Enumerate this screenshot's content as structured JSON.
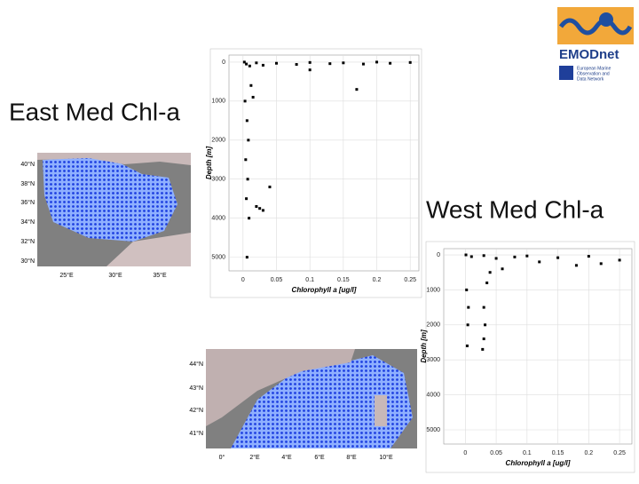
{
  "slide": {
    "east_title": "East Med Chl-a",
    "west_title": "West Med Chl-a",
    "logo": {
      "name": "EMODnet",
      "subtitle_lines": [
        "European Marine",
        "Observation and",
        "Data Network"
      ]
    }
  },
  "maps": [
    {
      "lon_labels": [
        "25°E",
        "30°E",
        "35°E"
      ],
      "lat_labels": [
        "40°N",
        "38°N",
        "36°N",
        "34°N",
        "32°N",
        "30°N"
      ]
    },
    {
      "lon_labels": [
        "0°",
        "2°E",
        "4°E",
        "6°E",
        "8°E",
        "10°E"
      ],
      "lat_labels": [
        "44°N",
        "43°N",
        "42°N",
        "41°N"
      ]
    }
  ],
  "chart_data": [
    {
      "type": "scatter",
      "xlabel": "Chlorophyll a [ug/l]",
      "ylabel": "Depth [m]",
      "color": "#000000",
      "grid": true,
      "y_inverted": true,
      "xlim": [
        -0.021,
        0.263
      ],
      "ylim": [
        -180,
        5350
      ],
      "xticks": [
        0,
        0.05,
        0.1,
        0.15,
        0.2,
        0.25
      ],
      "yticks": [
        0,
        1000,
        2000,
        3000,
        4000,
        5000
      ],
      "x": [
        0.002,
        0.005,
        0.01,
        0.02,
        0.03,
        0.05,
        0.08,
        0.1,
        0.13,
        0.15,
        0.18,
        0.2,
        0.22,
        0.25,
        0.003,
        0.006,
        0.008,
        0.004,
        0.007,
        0.005,
        0.009,
        0.006,
        0.02,
        0.025,
        0.03,
        0.04,
        0.012,
        0.015,
        0.1,
        0.17
      ],
      "values": [
        0,
        50,
        100,
        20,
        80,
        30,
        60,
        10,
        40,
        20,
        50,
        0,
        30,
        10,
        1000,
        1500,
        2000,
        2500,
        3000,
        3500,
        4000,
        5000,
        3700,
        3750,
        3800,
        3200,
        600,
        900,
        200,
        700
      ]
    },
    {
      "type": "scatter",
      "xlabel": "Chlorophyll a [ug/l]",
      "ylabel": "Depth [m]",
      "color": "#000000",
      "grid": true,
      "y_inverted": true,
      "xlim": [
        -0.035,
        0.27
      ],
      "ylim": [
        -178,
        5406
      ],
      "xticks": [
        0,
        0.05,
        0.1,
        0.15,
        0.2,
        0.25
      ],
      "yticks": [
        0,
        1000,
        2000,
        3000,
        4000,
        5000
      ],
      "x": [
        0.001,
        0.01,
        0.03,
        0.05,
        0.08,
        0.1,
        0.15,
        0.2,
        0.25,
        0.002,
        0.004,
        0.003,
        0.03,
        0.032,
        0.028,
        0.035,
        0.04,
        0.06,
        0.12,
        0.18,
        0.22,
        0.005,
        0.03
      ],
      "values": [
        0,
        50,
        20,
        100,
        60,
        30,
        80,
        40,
        150,
        1000,
        2000,
        2600,
        1500,
        2000,
        2700,
        800,
        500,
        400,
        200,
        300,
        250,
        1500,
        2400
      ]
    }
  ]
}
